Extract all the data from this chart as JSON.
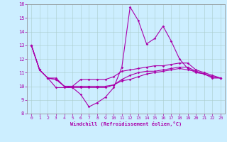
{
  "xlabel": "Windchill (Refroidissement éolien,°C)",
  "background_color": "#cceeff",
  "line_color": "#aa00aa",
  "ylim": [
    8,
    16
  ],
  "xlim": [
    -0.5,
    23.5
  ],
  "yticks": [
    8,
    9,
    10,
    11,
    12,
    13,
    14,
    15,
    16
  ],
  "xticks": [
    0,
    1,
    2,
    3,
    4,
    5,
    6,
    7,
    8,
    9,
    10,
    11,
    12,
    13,
    14,
    15,
    16,
    17,
    18,
    19,
    20,
    21,
    22,
    23
  ],
  "series": [
    {
      "x": [
        0,
        1,
        2,
        3,
        4,
        5,
        6,
        7,
        8,
        9,
        10,
        11,
        12,
        13,
        14,
        15,
        16,
        17,
        18,
        19,
        20,
        21,
        22,
        23
      ],
      "y": [
        13,
        11.2,
        10.6,
        9.9,
        9.9,
        9.9,
        9.4,
        8.5,
        8.8,
        9.2,
        9.9,
        11.4,
        15.8,
        14.8,
        13.1,
        13.5,
        14.4,
        13.3,
        12.0,
        11.3,
        11.0,
        10.9,
        10.6,
        10.6
      ]
    },
    {
      "x": [
        0,
        1,
        2,
        3,
        4,
        5,
        6,
        7,
        8,
        9,
        10,
        11,
        12,
        13,
        14,
        15,
        16,
        17,
        18,
        19,
        20,
        21,
        22,
        23
      ],
      "y": [
        13,
        11.2,
        10.6,
        10.6,
        10.0,
        10.0,
        10.5,
        10.5,
        10.5,
        10.5,
        10.7,
        11.1,
        11.2,
        11.3,
        11.4,
        11.5,
        11.5,
        11.6,
        11.7,
        11.7,
        11.2,
        11.0,
        10.8,
        10.6
      ]
    },
    {
      "x": [
        0,
        1,
        2,
        3,
        4,
        5,
        6,
        7,
        8,
        9,
        10,
        11,
        12,
        13,
        14,
        15,
        16,
        17,
        18,
        19,
        20,
        21,
        22,
        23
      ],
      "y": [
        13,
        11.2,
        10.6,
        10.5,
        10.0,
        10.0,
        10.0,
        10.0,
        10.0,
        10.0,
        10.1,
        10.4,
        10.5,
        10.7,
        10.9,
        11.0,
        11.1,
        11.2,
        11.3,
        11.2,
        11.1,
        10.9,
        10.7,
        10.6
      ]
    },
    {
      "x": [
        0,
        1,
        2,
        3,
        4,
        5,
        6,
        7,
        8,
        9,
        10,
        11,
        12,
        13,
        14,
        15,
        16,
        17,
        18,
        19,
        20,
        21,
        22,
        23
      ],
      "y": [
        13,
        11.2,
        10.6,
        10.5,
        10.0,
        9.9,
        9.9,
        9.9,
        9.9,
        9.9,
        10.1,
        10.5,
        10.8,
        11.0,
        11.1,
        11.1,
        11.2,
        11.3,
        11.4,
        11.4,
        11.1,
        10.9,
        10.7,
        10.6
      ]
    }
  ]
}
